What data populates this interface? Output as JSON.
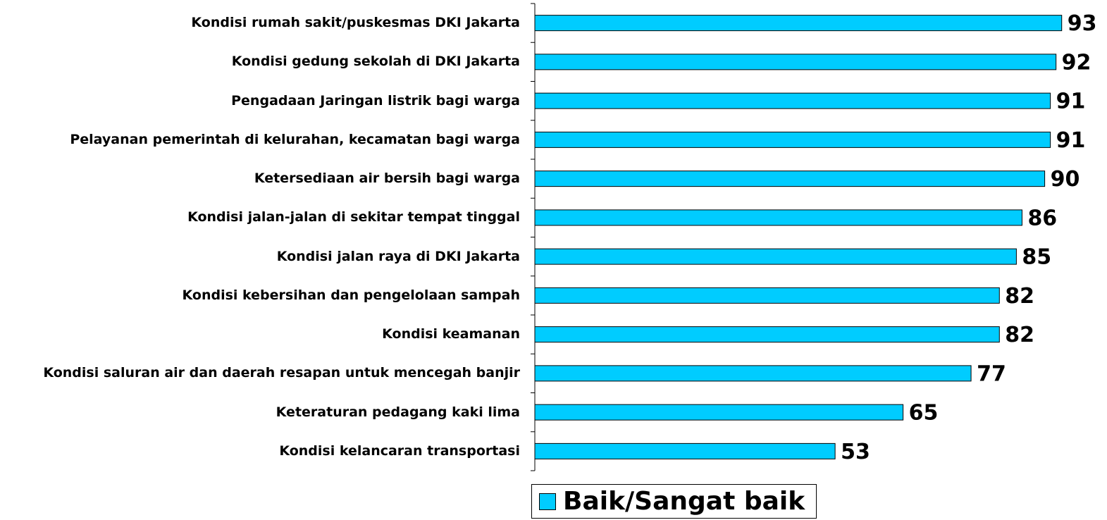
{
  "chart_data": {
    "type": "bar",
    "orientation": "horizontal",
    "categories": [
      "Kondisi rumah sakit/puskesmas DKI Jakarta",
      "Kondisi gedung sekolah di DKI Jakarta",
      "Pengadaan Jaringan listrik bagi warga",
      "Pelayanan pemerintah di kelurahan, kecamatan bagi warga",
      "Ketersediaan air bersih bagi warga",
      "Kondisi jalan-jalan di sekitar tempat tinggal",
      "Kondisi jalan raya di DKI Jakarta",
      "Kondisi kebersihan dan pengelolaan sampah",
      "Kondisi keamanan",
      "Kondisi saluran air dan daerah resapan untuk mencegah banjir",
      "Keteraturan pedagang kaki lima",
      "Kondisi kelancaran transportasi"
    ],
    "series": [
      {
        "name": "Baik/Sangat baik",
        "color": "#00ccff",
        "values": [
          93,
          92,
          91,
          91,
          90,
          86,
          85,
          82,
          82,
          77,
          65,
          53
        ]
      }
    ],
    "xlim": [
      0,
      100
    ]
  }
}
